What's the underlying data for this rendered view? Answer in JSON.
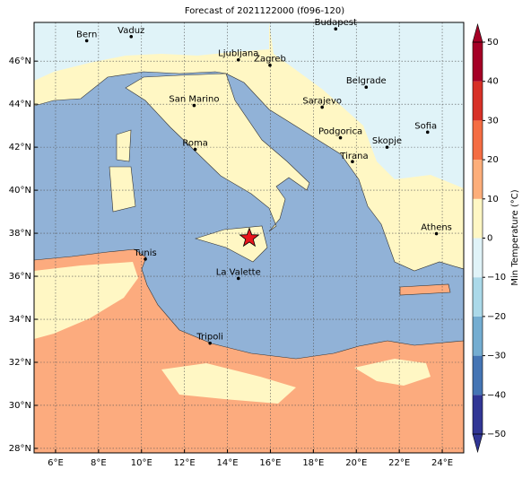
{
  "title": "Forecast of 2021122000 (f096-120)",
  "map": {
    "lonlim": [
      5,
      25
    ],
    "latlim": [
      27.79,
      47.8
    ],
    "xticks": [
      {
        "value": 6,
        "label": "6°E"
      },
      {
        "value": 8,
        "label": "8°E"
      },
      {
        "value": 10,
        "label": "10°E"
      },
      {
        "value": 12,
        "label": "12°E"
      },
      {
        "value": 14,
        "label": "14°E"
      },
      {
        "value": 16,
        "label": "16°E"
      },
      {
        "value": 18,
        "label": "18°E"
      },
      {
        "value": 20,
        "label": "20°E"
      },
      {
        "value": 22,
        "label": "22°E"
      },
      {
        "value": 24,
        "label": "24°E"
      }
    ],
    "yticks": [
      {
        "value": 28,
        "label": "28°N"
      },
      {
        "value": 30,
        "label": "30°N"
      },
      {
        "value": 32,
        "label": "32°N"
      },
      {
        "value": 34,
        "label": "34°N"
      },
      {
        "value": 36,
        "label": "36°N"
      },
      {
        "value": 38,
        "label": "38°N"
      },
      {
        "value": 40,
        "label": "40°N"
      },
      {
        "value": 42,
        "label": "42°N"
      },
      {
        "value": 44,
        "label": "44°N"
      },
      {
        "value": 46,
        "label": "46°N"
      }
    ],
    "grid": true,
    "cities": [
      {
        "name": "Bern",
        "lon": 7.45,
        "lat": 46.95
      },
      {
        "name": "Vaduz",
        "lon": 9.52,
        "lat": 47.14
      },
      {
        "name": "Budapest",
        "lon": 19.04,
        "lat": 47.5
      },
      {
        "name": "Ljubljana",
        "lon": 14.51,
        "lat": 46.06
      },
      {
        "name": "Zagreb",
        "lon": 15.98,
        "lat": 45.81
      },
      {
        "name": "Belgrade",
        "lon": 20.46,
        "lat": 44.79
      },
      {
        "name": "San Marino",
        "lon": 12.45,
        "lat": 43.94
      },
      {
        "name": "Sarajevo",
        "lon": 18.41,
        "lat": 43.86
      },
      {
        "name": "Sofia",
        "lon": 23.32,
        "lat": 42.7
      },
      {
        "name": "Podgorica",
        "lon": 19.26,
        "lat": 42.44
      },
      {
        "name": "Skopje",
        "lon": 21.43,
        "lat": 42.0
      },
      {
        "name": "Roma",
        "lon": 12.5,
        "lat": 41.9
      },
      {
        "name": "Tirana",
        "lon": 19.82,
        "lat": 41.33
      },
      {
        "name": "Athens",
        "lon": 23.73,
        "lat": 37.98
      },
      {
        "name": "Tunis",
        "lon": 10.18,
        "lat": 36.8
      },
      {
        "name": "La Valette",
        "lon": 14.51,
        "lat": 35.9
      },
      {
        "name": "Tripoli",
        "lon": 13.19,
        "lat": 32.89
      }
    ],
    "marker": {
      "lon": 15.02,
      "lat": 37.78
    }
  },
  "colorbar": {
    "label": "Min Temperature (°C)",
    "lim": [
      -50,
      50
    ],
    "ticks": [
      {
        "value": -50,
        "label": "−50"
      },
      {
        "value": -40,
        "label": "−40"
      },
      {
        "value": -30,
        "label": "−30"
      },
      {
        "value": -20,
        "label": "−20"
      },
      {
        "value": -10,
        "label": "−10"
      },
      0,
      10,
      20,
      30,
      40,
      50
    ],
    "colors": [
      "#313695",
      "#4575b4",
      "#74add1",
      "#abd9e9",
      "#e0f3f8",
      "#fff7c4",
      "#fdae7a",
      "#f46d43",
      "#d73027",
      "#a50026"
    ]
  }
}
